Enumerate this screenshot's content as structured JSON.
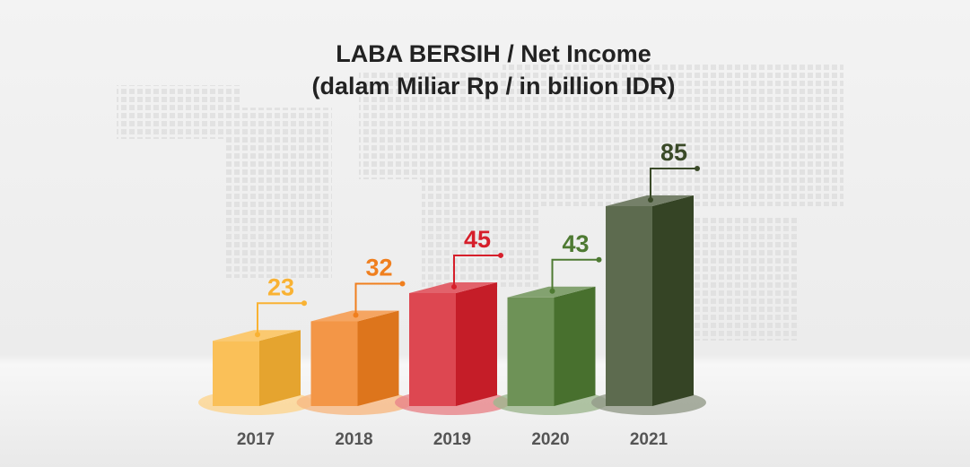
{
  "chart_data": {
    "type": "bar3d",
    "title": "LABA BERSIH / Net Income",
    "subtitle": "(dalam Miliar Rp / in billion IDR)",
    "categories": [
      "2017",
      "2018",
      "2019",
      "2020",
      "2021"
    ],
    "values": [
      23,
      32,
      45,
      43,
      85
    ],
    "colors": [
      "#f9b233",
      "#f07f1e",
      "#d61f2b",
      "#4e7a32",
      "#3a4a28"
    ]
  }
}
